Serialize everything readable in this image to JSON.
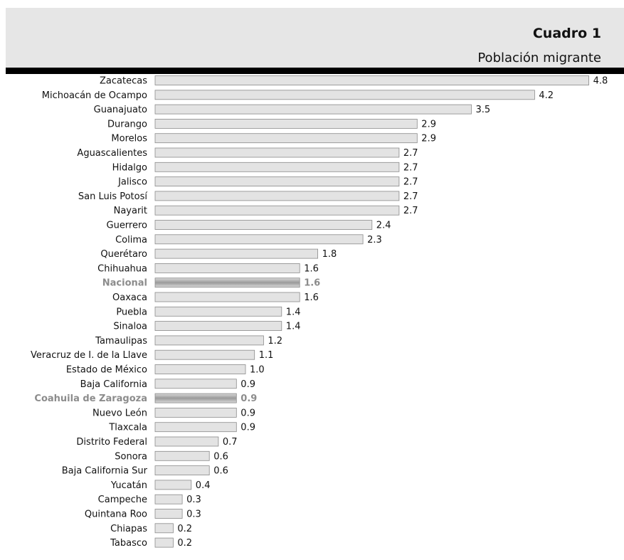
{
  "header": {
    "title": "Cuadro 1",
    "subtitle": "Población migrante"
  },
  "chart_data": {
    "type": "bar",
    "orientation": "horizontal",
    "title": "Cuadro 1",
    "subtitle": "Población migrante",
    "categories": [
      "Zacatecas",
      "Michoacán de Ocampo",
      "Guanajuato",
      "Durango",
      "Morelos",
      "Aguascalientes",
      "Hidalgo",
      "Jalisco",
      "San Luis Potosí",
      "Nayarit",
      "Guerrero",
      "Colima",
      "Querétaro",
      "Chihuahua",
      "Nacional",
      "Oaxaca",
      "Puebla",
      "Sinaloa",
      "Tamaulipas",
      "Veracruz de I. de la Llave",
      "Estado de México",
      "Baja California",
      "Coahuila de Zaragoza",
      "Nuevo León",
      "Tlaxcala",
      "Distrito Federal",
      "Sonora",
      "Baja California Sur",
      "Yucatán",
      "Campeche",
      "Quintana Roo",
      "Chiapas",
      "Tabasco"
    ],
    "values": [
      4.8,
      4.2,
      3.5,
      2.9,
      2.9,
      2.7,
      2.7,
      2.7,
      2.7,
      2.7,
      2.4,
      2.3,
      1.8,
      1.6,
      1.6,
      1.6,
      1.4,
      1.4,
      1.2,
      1.1,
      1.0,
      0.9,
      0.9,
      0.9,
      0.9,
      0.7,
      0.6,
      0.6,
      0.4,
      0.3,
      0.3,
      0.2,
      0.2
    ],
    "labels": [
      "4.8",
      "4.2",
      "3.5",
      "2.9",
      "2.9",
      "2.7",
      "2.7",
      "2.7",
      "2.7",
      "2.7",
      "2.4",
      "2.3",
      "1.8",
      "1.6",
      "1.6",
      "1.6",
      "1.4",
      "1.4",
      "1.2",
      "1.1",
      "1.0",
      "0.9",
      "0.9",
      "0.9",
      "0.9",
      "0.7",
      "0.6",
      "0.6",
      "0.4",
      "0.3",
      "0.3",
      "0.2",
      "0.2"
    ],
    "highlighted": [
      "Nacional",
      "Coahuila de Zaragoza"
    ],
    "xlim": [
      0,
      4.8
    ],
    "grid": false,
    "colors": {
      "bar_fill": "#e3e3e3",
      "bar_stroke": "#8a8a8a",
      "highlight_bar": "#a8a8a8",
      "highlight_text": "#8c8c8c"
    }
  }
}
